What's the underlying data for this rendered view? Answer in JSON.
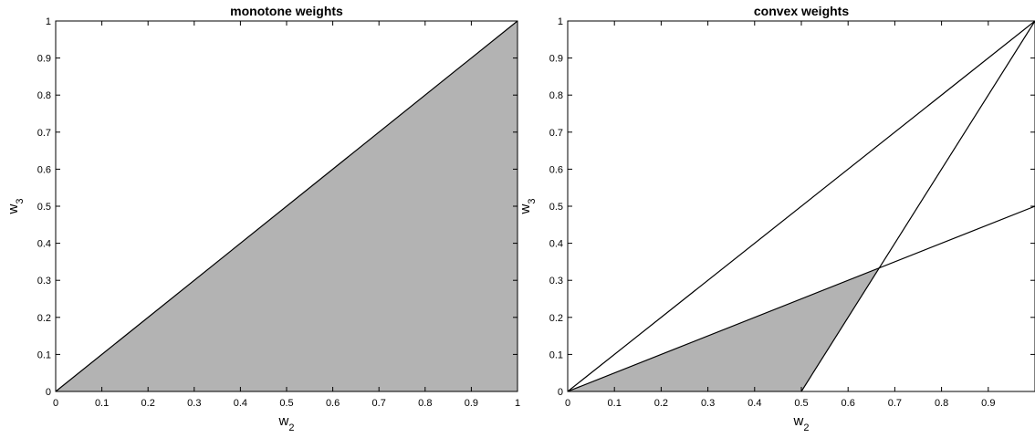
{
  "chart_data": [
    {
      "type": "area",
      "title": "monotone weights",
      "xlabel": "w",
      "xlabel_sub": "2",
      "ylabel": "w",
      "ylabel_sub": "3",
      "xlim": [
        0,
        1
      ],
      "ylim": [
        0,
        1
      ],
      "xticks": [
        0,
        0.1,
        0.2,
        0.3,
        0.4,
        0.5,
        0.6,
        0.7,
        0.8,
        0.9,
        1
      ],
      "xtick_labels": [
        "0",
        "0.1",
        "0.2",
        "0.3",
        "0.4",
        "0.5",
        "0.6",
        "0.7",
        "0.8",
        "0.9",
        "1"
      ],
      "yticks": [
        0,
        0.1,
        0.2,
        0.3,
        0.4,
        0.5,
        0.6,
        0.7,
        0.8,
        0.9,
        1
      ],
      "ytick_labels": [
        "0",
        "0.1",
        "0.2",
        "0.3",
        "0.4",
        "0.5",
        "0.6",
        "0.7",
        "0.8",
        "0.9",
        "1"
      ],
      "grid": false,
      "fill_color": "#b3b3b3",
      "region": [
        [
          0,
          0
        ],
        [
          1,
          0
        ],
        [
          1,
          1
        ]
      ],
      "lines": [
        {
          "x": [
            0,
            1
          ],
          "y": [
            0,
            1
          ]
        }
      ]
    },
    {
      "type": "area",
      "title": "convex weights",
      "xlabel": "w",
      "xlabel_sub": "2",
      "ylabel": "w",
      "ylabel_sub": "3",
      "xlim": [
        0,
        1
      ],
      "ylim": [
        0,
        1
      ],
      "xticks": [
        0,
        0.1,
        0.2,
        0.3,
        0.4,
        0.5,
        0.6,
        0.7,
        0.8,
        0.9
      ],
      "xtick_labels": [
        "0",
        "0.1",
        "0.2",
        "0.3",
        "0.4",
        "0.5",
        "0.6",
        "0.7",
        "0.8",
        "0.9"
      ],
      "yticks": [
        0,
        0.1,
        0.2,
        0.3,
        0.4,
        0.5,
        0.6,
        0.7,
        0.8,
        0.9,
        1
      ],
      "ytick_labels": [
        "0",
        "0.1",
        "0.2",
        "0.3",
        "0.4",
        "0.5",
        "0.6",
        "0.7",
        "0.8",
        "0.9",
        "1"
      ],
      "grid": false,
      "fill_color": "#b3b3b3",
      "region": [
        [
          0,
          0
        ],
        [
          0.5,
          0
        ],
        [
          0.6667,
          0.3333
        ]
      ],
      "lines": [
        {
          "x": [
            0,
            1
          ],
          "y": [
            0,
            1
          ]
        },
        {
          "x": [
            0,
            1
          ],
          "y": [
            0,
            0.5
          ]
        },
        {
          "x": [
            0.5,
            1
          ],
          "y": [
            0,
            1
          ]
        }
      ]
    }
  ]
}
